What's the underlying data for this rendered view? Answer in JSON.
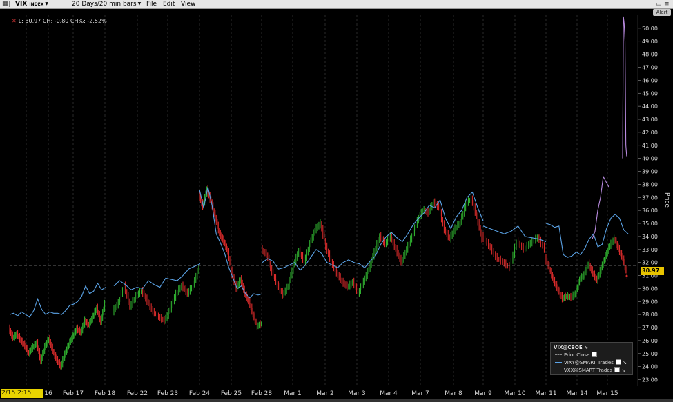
{
  "toolbar": {
    "symbol": "VIX",
    "symbol_suffix": "INDEX",
    "timeframe": "20 Days/20 min bars",
    "menu": [
      "File",
      "Edit",
      "View"
    ],
    "alert_label": "Alert"
  },
  "readout": "L: 30.97 CH: -0.80 CH%: -2.52%",
  "last_price_label": "30.97",
  "legend": {
    "title": "VIX@CBOE",
    "items": [
      {
        "label": "Prior Close",
        "color": "#888888"
      },
      {
        "label": "VIXY@SMART Trades",
        "color": "#5ba3e6"
      },
      {
        "label": "VXX@SMART Trades",
        "color": "#b98be0"
      }
    ]
  },
  "colors": {
    "up": "#2fae2f",
    "down": "#d92b2b",
    "vixy": "#5ba3e6",
    "vxx": "#b98be0",
    "grid": "#555555",
    "highlight": "#e8d300"
  },
  "chart_data": {
    "type": "line",
    "ylabel": "Price",
    "ylim": [
      22.5,
      51.0
    ],
    "yticks": [
      "23.00",
      "24.00",
      "25.00",
      "26.00",
      "27.00",
      "28.00",
      "29.00",
      "30.00",
      "31.00",
      "32.00",
      "33.00",
      "34.00",
      "35.00",
      "36.00",
      "37.00",
      "38.00",
      "39.00",
      "40.00",
      "41.00",
      "42.00",
      "43.00",
      "44.00",
      "45.00",
      "46.00",
      "47.00",
      "48.00",
      "49.00",
      "50.00"
    ],
    "xticks": [
      "2/15 2:15",
      "16",
      "Feb 17",
      "Feb 18",
      "Feb 22",
      "Feb 23",
      "Feb 24",
      "Feb 25",
      "Feb 28",
      "Mar 1",
      "Mar 2",
      "Mar 3",
      "Mar 4",
      "Mar 7",
      "Mar 8",
      "Mar 9",
      "Mar 10",
      "Mar 11",
      "Mar 14",
      "Mar 15"
    ],
    "prior_close": 31.77,
    "last": 30.97,
    "series": [
      {
        "name": "VIX@CBOE",
        "style": "bars",
        "values": [
          [
            26.9,
            26.2,
            26.5,
            26.0,
            25.6,
            25.0,
            25.5,
            25.8,
            24.4,
            25.5,
            26.1,
            25.2,
            24.5,
            24.0,
            24.9,
            25.7,
            26.3,
            26.9,
            26.6,
            27.5,
            27.2,
            27.8,
            28.5,
            27.4,
            28.8
          ],
          [
            28.2,
            28.9,
            30.2,
            28.6,
            29.4,
            29.8,
            29.0,
            28.2,
            27.8,
            27.5,
            28.4,
            29.6,
            30.2,
            29.6,
            30.3,
            31.6
          ],
          [
            37.2,
            36.3,
            37.6,
            36.6,
            35.4,
            34.2,
            33.6,
            32.8,
            31.0,
            30.0,
            30.7,
            29.6,
            29.0,
            28.0,
            27.1,
            27.3
          ],
          [
            33.0,
            32.6,
            31.2,
            30.3,
            29.5,
            30.2,
            31.8,
            32.9,
            32.0,
            33.4,
            34.5,
            35.0,
            33.2,
            32.0,
            31.2,
            30.5,
            30.1,
            30.5,
            29.6,
            30.5,
            31.5,
            32.8,
            34.0,
            33.4,
            34.0,
            33.0,
            32.0,
            33.0,
            34.0,
            35.2,
            36.0,
            35.8,
            36.6,
            36.2,
            34.5,
            33.8,
            34.6,
            35.1,
            36.5,
            36.9,
            35.5,
            33.8
          ],
          [
            34.0,
            33.3,
            32.4,
            32.0,
            31.6,
            33.6,
            33.0,
            33.5,
            33.9,
            33.0
          ],
          [
            32.3,
            31.5,
            30.6,
            29.9,
            29.2,
            29.4,
            29.3,
            29.6,
            30.7,
            31.0,
            31.9,
            31.2,
            30.6,
            31.6,
            32.5,
            33.3,
            33.8,
            33.0,
            32.3,
            31.0
          ]
        ]
      },
      {
        "name": "VIXY@SMART Trades",
        "style": "line",
        "values": [
          [
            28.0,
            28.1,
            27.9,
            28.2,
            28.0,
            27.8,
            28.3,
            29.2,
            28.4,
            28.0,
            28.2,
            28.1,
            28.1,
            28.0,
            28.3,
            28.7,
            28.8,
            29.0,
            29.4,
            30.2,
            29.6,
            29.8,
            30.4,
            29.9,
            30.1
          ],
          [
            30.2,
            30.6,
            30.3,
            29.9,
            30.1,
            30.0,
            30.6,
            30.3,
            30.1,
            30.8,
            30.7,
            30.6,
            31.0,
            31.5,
            31.7,
            31.9
          ],
          [
            37.6,
            36.2,
            37.8,
            36.4,
            34.2,
            33.5,
            32.7,
            31.6,
            30.8,
            30.0,
            30.2,
            29.6,
            29.3,
            29.6,
            29.5,
            29.6
          ],
          [
            32.0,
            32.3,
            32.1,
            31.5,
            31.6,
            31.8,
            32.0,
            31.4,
            31.8,
            32.4,
            33.0,
            32.7,
            32.0,
            31.8,
            31.6,
            32.0,
            32.2,
            32.0,
            31.9,
            31.6,
            32.1,
            32.5,
            33.4,
            34.0,
            34.3,
            33.9,
            33.6,
            34.2,
            34.9,
            35.4,
            35.8,
            36.4,
            36.2,
            36.8,
            35.4,
            34.6,
            35.5,
            36.0,
            37.0,
            37.4,
            36.2,
            35.2
          ],
          [
            34.8,
            34.6,
            34.4,
            34.2,
            34.4,
            34.8,
            34.0,
            33.9,
            33.8,
            33.6
          ],
          [
            35.0,
            34.9,
            34.7,
            34.8,
            32.6,
            32.4,
            32.5,
            32.8,
            32.6,
            33.1,
            33.8,
            34.2,
            33.2,
            33.4,
            34.6,
            35.4,
            35.7,
            35.4,
            34.5,
            34.2
          ]
        ]
      },
      {
        "name": "VXX@SMART Trades",
        "style": "line",
        "values": [
          [
            33.8,
            34.4,
            36.0,
            37.0,
            38.6,
            38.2,
            37.8
          ],
          [
            40.0,
            50.9,
            50.3,
            49.0,
            41.0,
            40.2,
            40.1
          ]
        ]
      }
    ]
  }
}
